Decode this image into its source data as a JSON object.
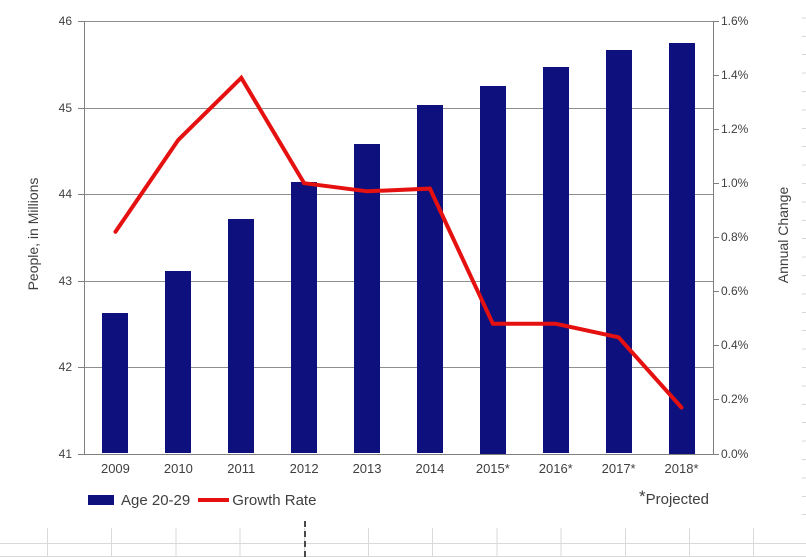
{
  "chart_data": {
    "type": "combo",
    "title": "",
    "categories": [
      "2009",
      "2010",
      "2011",
      "2012",
      "2013",
      "2014",
      "2015*",
      "2016*",
      "2017*",
      "2018*"
    ],
    "series": [
      {
        "name": "Age 20-29",
        "render": "bar",
        "axis": "left",
        "color": "#0e107e",
        "values": [
          42.62,
          43.11,
          43.71,
          44.14,
          44.58,
          45.03,
          45.25,
          45.47,
          45.66,
          45.75
        ]
      },
      {
        "name": "Growth Rate",
        "render": "line",
        "axis": "right",
        "color": "#e51010",
        "values": [
          0.82,
          1.16,
          1.39,
          1.0,
          0.97,
          0.98,
          0.48,
          0.48,
          0.43,
          0.17
        ]
      }
    ],
    "left_axis": {
      "title": "People, in Millions",
      "min": 41,
      "max": 46,
      "step": 1,
      "ticks": [
        "46",
        "45",
        "44",
        "43",
        "42",
        "41"
      ]
    },
    "right_axis": {
      "title": "Annual Change",
      "min": 0.0,
      "max": 1.6,
      "step": 0.2,
      "ticks": [
        "1.6%",
        "1.4%",
        "1.2%",
        "1.0%",
        "0.8%",
        "0.6%",
        "0.4%",
        "0.2%",
        "0.0%"
      ]
    },
    "grid": true,
    "legend_position": "bottom-left",
    "note_star": "*",
    "note_label": "Projected"
  },
  "colors": {
    "bar": "#0e107e",
    "line": "#e51010",
    "gridline": "#8e8e8e",
    "axis": "#7f7f7f",
    "text": "#3f3f3f",
    "worksheet_grid": "#d9d9d9"
  }
}
